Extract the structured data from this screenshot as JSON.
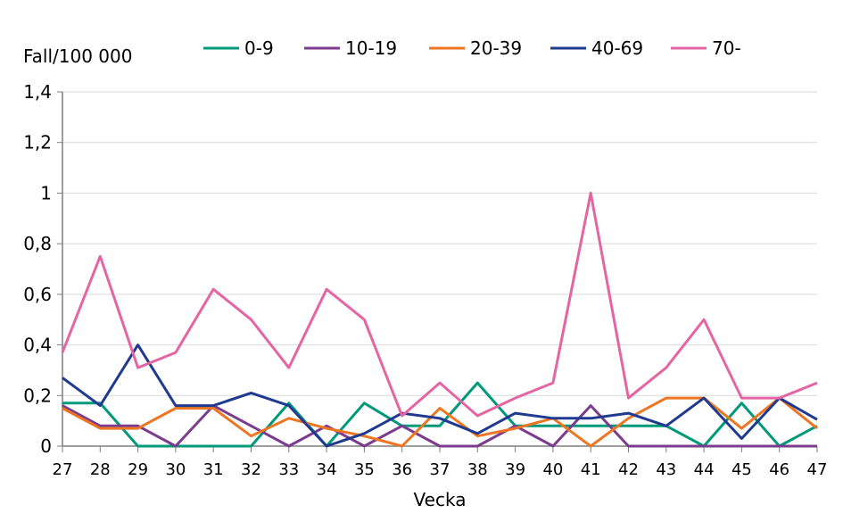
{
  "chart_data": {
    "type": "line",
    "ylabel": "Fall/100 000",
    "xlabel": "Vecka",
    "x": [
      27,
      28,
      29,
      30,
      31,
      32,
      33,
      34,
      35,
      36,
      37,
      38,
      39,
      40,
      41,
      42,
      43,
      44,
      45,
      46,
      47
    ],
    "ylim": [
      0,
      1.4
    ],
    "yticks": [
      "0",
      "0,2",
      "0,4",
      "0,6",
      "0,8",
      "1",
      "1,2",
      "1,4"
    ],
    "grid": true,
    "legend_position": "top",
    "series": [
      {
        "name": "0-9",
        "color": "#00997a",
        "values": [
          0.17,
          0.17,
          0,
          0,
          0,
          0,
          0.17,
          0,
          0.17,
          0.08,
          0.08,
          0.25,
          0.08,
          0.08,
          0.08,
          0.08,
          0.08,
          0,
          0.17,
          0,
          0.08
        ]
      },
      {
        "name": "10-19",
        "color": "#7b3b8e",
        "values": [
          0.16,
          0.08,
          0.08,
          0,
          0.16,
          0.08,
          0,
          0.08,
          0,
          0.08,
          0,
          0,
          0.08,
          0,
          0.16,
          0,
          0,
          0,
          0,
          0,
          0
        ]
      },
      {
        "name": "20-39",
        "color": "#ee7623",
        "values": [
          0.15,
          0.07,
          0.07,
          0.15,
          0.15,
          0.04,
          0.11,
          0.07,
          0.04,
          0,
          0.15,
          0.04,
          0.07,
          0.11,
          0,
          0.11,
          0.19,
          0.19,
          0.07,
          0.19,
          0.07
        ]
      },
      {
        "name": "40-69",
        "color": "#1f3a8f",
        "values": [
          0.27,
          0.16,
          0.4,
          0.16,
          0.16,
          0.21,
          0.16,
          0,
          0.05,
          0.13,
          0.11,
          0.05,
          0.13,
          0.11,
          0.11,
          0.13,
          0.08,
          0.19,
          0.03,
          0.19,
          0.105
        ]
      },
      {
        "name": "70-",
        "color": "#e565a3",
        "values": [
          0.37,
          0.75,
          0.31,
          0.37,
          0.62,
          0.5,
          0.31,
          0.62,
          0.5,
          0.12,
          0.25,
          0.12,
          0.19,
          0.25,
          1.0,
          0.19,
          0.31,
          0.5,
          0.19,
          0.19,
          0.25
        ]
      }
    ]
  }
}
